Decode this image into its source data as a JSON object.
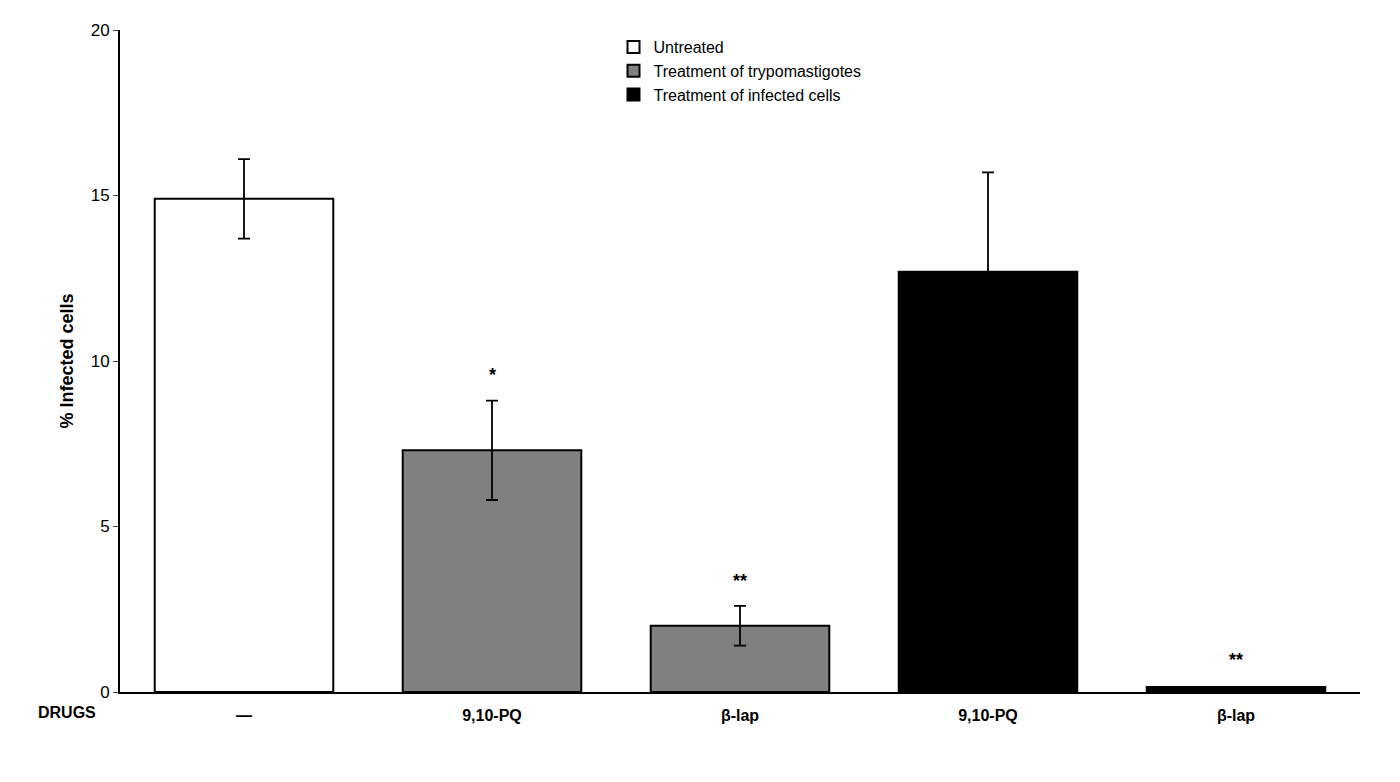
{
  "chart_data": {
    "type": "bar",
    "ylabel": "% Infected cells",
    "xlabel": "DRUGS",
    "categories": [
      "—",
      "9,10-PQ",
      "β-lap",
      "9,10-PQ",
      "β-lap"
    ],
    "series": [
      {
        "name": "Untreated",
        "color": "#ffffff",
        "values": [
          14.9,
          null,
          null,
          null,
          null
        ],
        "errors": [
          1.2,
          null,
          null,
          null,
          null
        ]
      },
      {
        "name": "Treatment of trypomastigotes",
        "color": "#808080",
        "values": [
          null,
          7.3,
          2.0,
          null,
          null
        ],
        "errors": [
          null,
          1.5,
          0.6,
          null,
          null
        ]
      },
      {
        "name": "Treatment of infected cells",
        "color": "#000000",
        "values": [
          null,
          null,
          null,
          12.7,
          0.15
        ],
        "errors": [
          null,
          null,
          null,
          3.0,
          null
        ]
      }
    ],
    "ylim": [
      0,
      20
    ],
    "yticks": [
      0,
      5,
      10,
      15,
      20
    ],
    "grid": false,
    "legend": "upper center",
    "annotations": [
      {
        "index": 1,
        "y": 9.2,
        "text": "*"
      },
      {
        "index": 2,
        "y": 3.0,
        "text": "**"
      },
      {
        "index": 4,
        "y": 0.6,
        "text": "**"
      }
    ]
  }
}
